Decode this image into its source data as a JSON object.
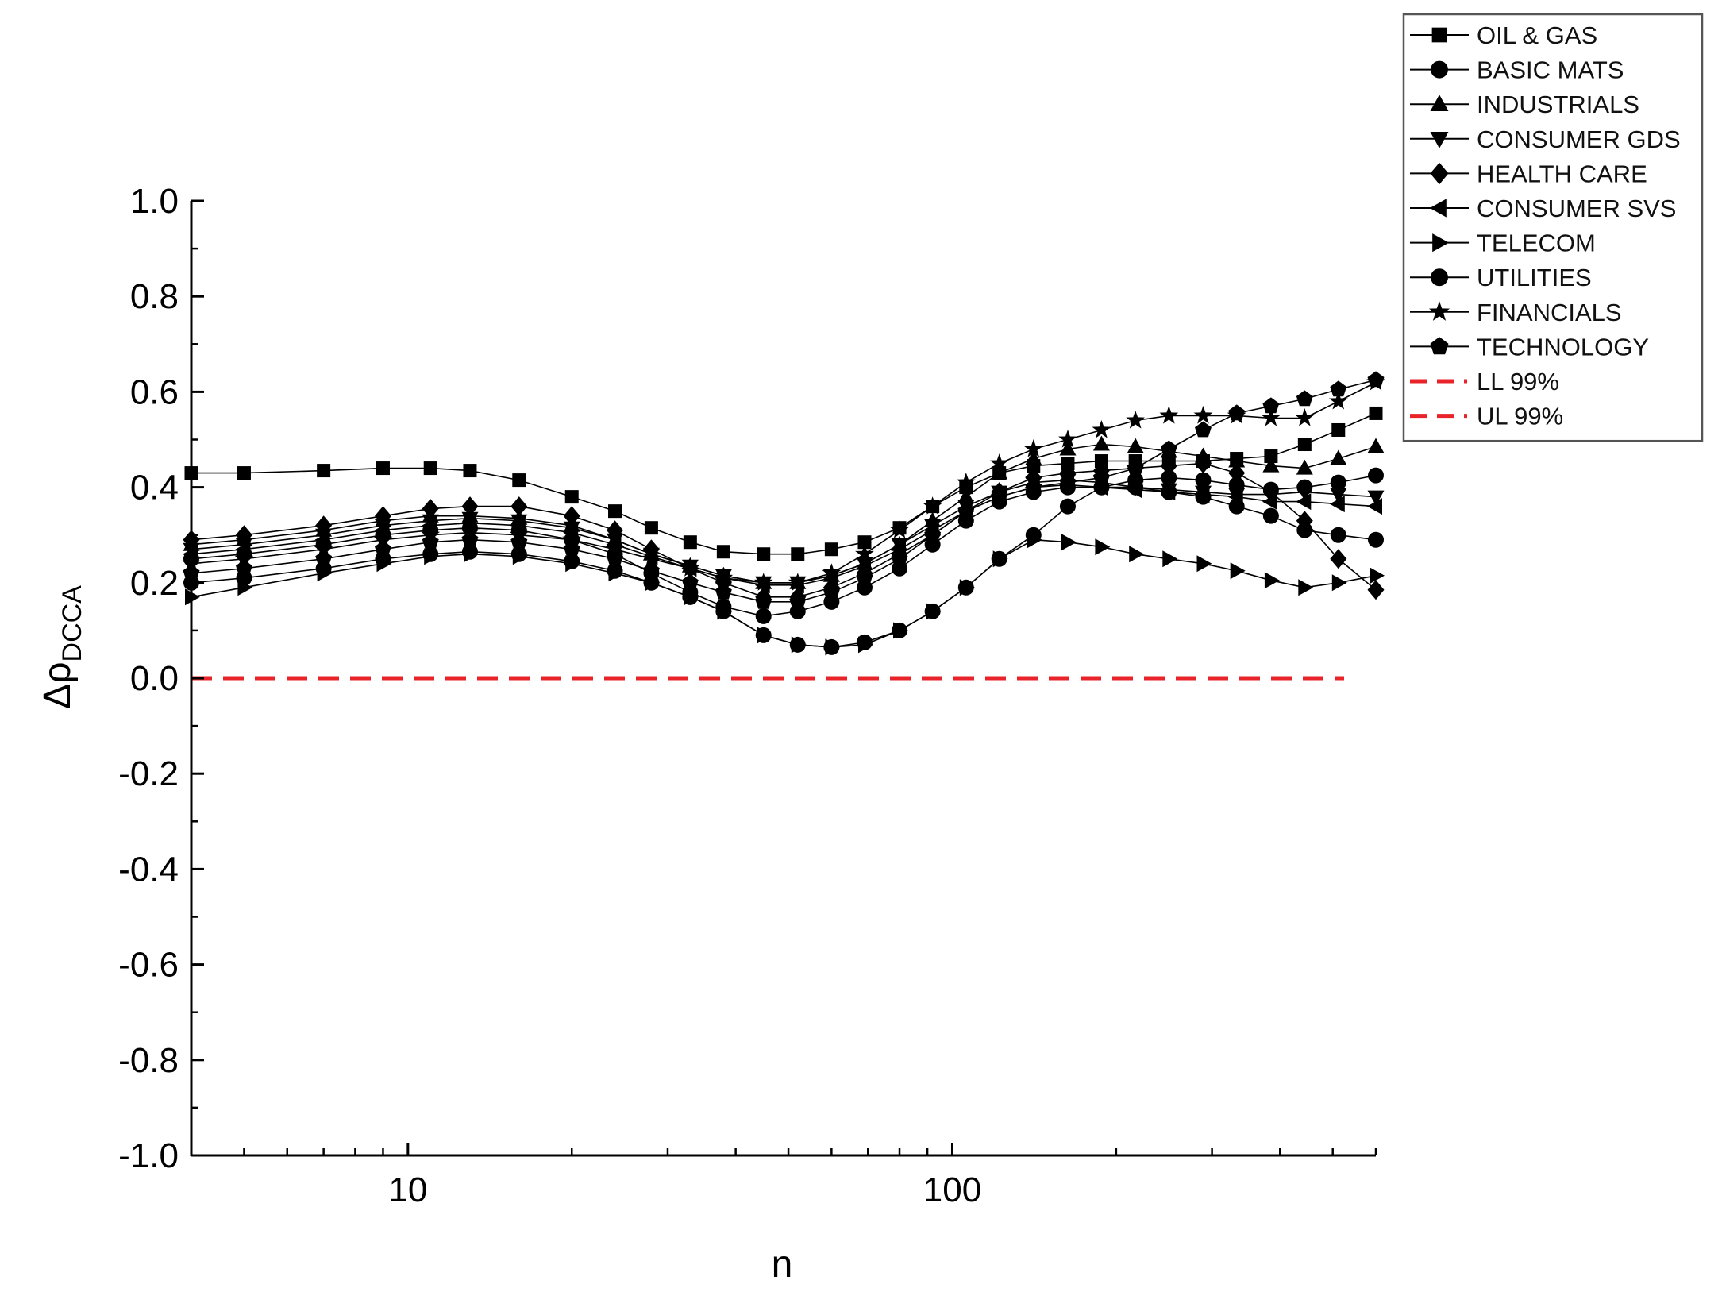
{
  "chart_data": {
    "type": "line",
    "xlabel": "n",
    "ylabel_main": "Δρ",
    "ylabel_sub": "DCCA",
    "x_scale": "log",
    "xlim": [
      4,
      600
    ],
    "ylim": [
      -1.0,
      1.0
    ],
    "x_ticks": [
      10,
      100
    ],
    "x_tick_labels": [
      "10",
      "100"
    ],
    "y_ticks": [
      -1.0,
      -0.8,
      -0.6,
      -0.4,
      -0.2,
      0.0,
      0.2,
      0.4,
      0.6,
      0.8,
      1.0
    ],
    "y_tick_labels": [
      "-1.0",
      "-0.8",
      "-0.6",
      "-0.4",
      "-0.2",
      "0.0",
      "0.2",
      "0.4",
      "0.6",
      "0.8",
      "1.0"
    ],
    "grid": false,
    "legend_position": "top-right, outside plot",
    "x": [
      4,
      5,
      7,
      9,
      11,
      13,
      16,
      20,
      24,
      28,
      33,
      38,
      45,
      52,
      60,
      69,
      80,
      92,
      106,
      122,
      141,
      163,
      188,
      217,
      250,
      289,
      333,
      385,
      444,
      512,
      600
    ],
    "series": [
      {
        "name": "OIL & GAS",
        "marker": "square",
        "values": [
          0.43,
          0.43,
          0.435,
          0.44,
          0.44,
          0.435,
          0.415,
          0.38,
          0.35,
          0.315,
          0.285,
          0.265,
          0.26,
          0.26,
          0.27,
          0.285,
          0.315,
          0.36,
          0.4,
          0.43,
          0.445,
          0.45,
          0.455,
          0.455,
          0.455,
          0.455,
          0.46,
          0.465,
          0.49,
          0.52,
          0.555
        ]
      },
      {
        "name": "BASIC MATS",
        "marker": "circle",
        "values": [
          0.25,
          0.26,
          0.28,
          0.3,
          0.31,
          0.315,
          0.31,
          0.29,
          0.26,
          0.22,
          0.18,
          0.15,
          0.13,
          0.14,
          0.16,
          0.19,
          0.23,
          0.28,
          0.33,
          0.37,
          0.39,
          0.4,
          0.4,
          0.4,
          0.39,
          0.38,
          0.36,
          0.34,
          0.31,
          0.3,
          0.29
        ]
      },
      {
        "name": "INDUSTRIALS",
        "marker": "triangle-up",
        "values": [
          0.28,
          0.29,
          0.31,
          0.33,
          0.34,
          0.34,
          0.335,
          0.32,
          0.29,
          0.26,
          0.235,
          0.215,
          0.2,
          0.2,
          0.215,
          0.24,
          0.28,
          0.33,
          0.38,
          0.43,
          0.46,
          0.48,
          0.49,
          0.485,
          0.475,
          0.465,
          0.455,
          0.445,
          0.44,
          0.46,
          0.485
        ]
      },
      {
        "name": "CONSUMER GDS",
        "marker": "triangle-down",
        "values": [
          0.27,
          0.28,
          0.3,
          0.32,
          0.33,
          0.335,
          0.33,
          0.315,
          0.29,
          0.26,
          0.235,
          0.215,
          0.2,
          0.2,
          0.215,
          0.24,
          0.28,
          0.32,
          0.36,
          0.39,
          0.41,
          0.415,
          0.41,
          0.4,
          0.395,
          0.39,
          0.385,
          0.385,
          0.39,
          0.385,
          0.38
        ]
      },
      {
        "name": "HEALTH CARE",
        "marker": "diamond",
        "values": [
          0.29,
          0.3,
          0.32,
          0.34,
          0.355,
          0.36,
          0.36,
          0.34,
          0.31,
          0.27,
          0.23,
          0.2,
          0.17,
          0.17,
          0.19,
          0.22,
          0.26,
          0.3,
          0.35,
          0.39,
          0.42,
          0.43,
          0.435,
          0.44,
          0.445,
          0.45,
          0.43,
          0.39,
          0.33,
          0.25,
          0.185
        ]
      },
      {
        "name": "CONSUMER SVS",
        "marker": "triangle-left",
        "values": [
          0.26,
          0.27,
          0.29,
          0.31,
          0.32,
          0.325,
          0.32,
          0.305,
          0.28,
          0.255,
          0.23,
          0.21,
          0.195,
          0.195,
          0.21,
          0.235,
          0.27,
          0.31,
          0.35,
          0.38,
          0.4,
          0.405,
          0.4,
          0.395,
          0.39,
          0.385,
          0.38,
          0.37,
          0.37,
          0.365,
          0.36
        ]
      },
      {
        "name": "TELECOM",
        "marker": "triangle-right",
        "values": [
          0.17,
          0.19,
          0.22,
          0.24,
          0.255,
          0.26,
          0.255,
          0.24,
          0.22,
          0.2,
          0.17,
          0.14,
          0.09,
          0.07,
          0.065,
          0.07,
          0.1,
          0.14,
          0.19,
          0.25,
          0.29,
          0.285,
          0.275,
          0.26,
          0.25,
          0.24,
          0.225,
          0.205,
          0.19,
          0.2,
          0.215
        ]
      },
      {
        "name": "UTILITIES",
        "marker": "circle",
        "values": [
          0.2,
          0.21,
          0.23,
          0.25,
          0.26,
          0.265,
          0.26,
          0.245,
          0.225,
          0.2,
          0.17,
          0.14,
          0.09,
          0.07,
          0.065,
          0.075,
          0.1,
          0.14,
          0.19,
          0.25,
          0.3,
          0.36,
          0.4,
          0.415,
          0.42,
          0.415,
          0.405,
          0.395,
          0.4,
          0.41,
          0.425
        ]
      },
      {
        "name": "FINANCIALS",
        "marker": "star",
        "values": [
          0.24,
          0.25,
          0.27,
          0.29,
          0.3,
          0.305,
          0.3,
          0.29,
          0.27,
          0.25,
          0.23,
          0.21,
          0.2,
          0.2,
          0.22,
          0.26,
          0.31,
          0.36,
          0.41,
          0.45,
          0.48,
          0.5,
          0.52,
          0.54,
          0.55,
          0.55,
          0.55,
          0.545,
          0.545,
          0.58,
          0.62
        ]
      },
      {
        "name": "TECHNOLOGY",
        "marker": "pentagon",
        "values": [
          0.22,
          0.23,
          0.25,
          0.27,
          0.285,
          0.29,
          0.285,
          0.27,
          0.25,
          0.225,
          0.2,
          0.18,
          0.16,
          0.16,
          0.18,
          0.21,
          0.25,
          0.3,
          0.35,
          0.38,
          0.4,
          0.41,
          0.42,
          0.44,
          0.48,
          0.52,
          0.555,
          0.57,
          0.585,
          0.605,
          0.625
        ]
      }
    ],
    "reference_lines": [
      {
        "name": "LL 99%",
        "y": 0.0,
        "color": "#e8232a",
        "style": "dashed"
      },
      {
        "name": "UL 99%",
        "y": 0.0,
        "color": "#e8232a",
        "style": "dashed"
      }
    ]
  }
}
